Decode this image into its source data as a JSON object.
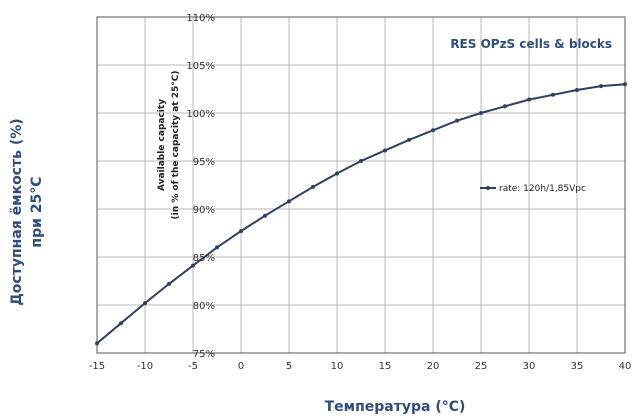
{
  "chart_data": {
    "type": "line",
    "title": "RES OPzS cells & blocks",
    "inner_ylabel_line1": "Available capacity",
    "inner_ylabel_line2": "(in % of  the capacity at 25°C)",
    "outer_ylabel_line1": "Доступная ёмкость (%)",
    "outer_ylabel_line2": "при 25°C",
    "xlabel": "Температура (°C)",
    "xlim": [
      -15,
      40
    ],
    "ylim": [
      75,
      110
    ],
    "xticks": [
      -15,
      -10,
      -5,
      0,
      5,
      10,
      15,
      20,
      25,
      30,
      35,
      40
    ],
    "xtick_labels": [
      "-15",
      "-10",
      "-5",
      "0",
      "5",
      "10",
      "15",
      "20",
      "25",
      "30",
      "35",
      "40"
    ],
    "yticks": [
      75,
      80,
      85,
      90,
      95,
      100,
      105,
      110
    ],
    "ytick_labels": [
      "75%",
      "80%",
      "85%",
      "90%",
      "95%",
      "100%",
      "105%",
      "110%"
    ],
    "grid": true,
    "legend_position": "right",
    "series_color": "#2e4060",
    "series": [
      {
        "name": "rate: 120h/1,85Vpc",
        "x": [
          -15,
          -12.5,
          -10,
          -7.5,
          -5,
          -2.5,
          0,
          2.5,
          5,
          7.5,
          10,
          12.5,
          15,
          17.5,
          20,
          22.5,
          25,
          27.5,
          30,
          32.5,
          35,
          37.5,
          40
        ],
        "y": [
          76.0,
          78.1,
          80.2,
          82.2,
          84.1,
          86.0,
          87.7,
          89.3,
          90.8,
          92.3,
          93.7,
          95.0,
          96.1,
          97.2,
          98.2,
          99.2,
          100.0,
          100.7,
          101.4,
          101.9,
          102.4,
          102.8,
          103.0
        ]
      }
    ]
  }
}
